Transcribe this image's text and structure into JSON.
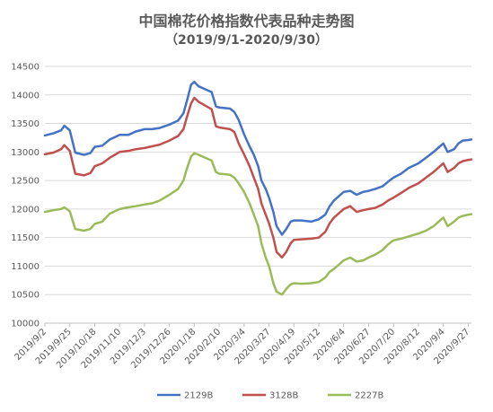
{
  "chart_data": {
    "type": "line",
    "title": "中国棉花价格指数代表品种走势图",
    "subtitle": "（2019/9/1-2020/9/30）",
    "xlabel": "",
    "ylabel": "",
    "ylim": [
      10000,
      14500
    ],
    "yticks": [
      "10000",
      "10500",
      "11000",
      "11500",
      "12000",
      "12500",
      "13000",
      "13500",
      "14000",
      "14500"
    ],
    "xticks": [
      "2019/9/2",
      "2019/9/25",
      "2019/10/18",
      "2019/11/10",
      "2019/12/3",
      "2019/12/26",
      "2020/1/18",
      "2020/2/10",
      "2020/3/4",
      "2020/3/27",
      "2020/4/19",
      "2020/5/12",
      "2020/6/4",
      "2020/6/27",
      "2020/7/20",
      "2020/8/12",
      "2020/9/4",
      "2020/9/27"
    ],
    "x_start": "2019/9/2",
    "x_end": "2020/9/30",
    "grid": true,
    "legend_position": "bottom",
    "series": [
      {
        "name": "2129B",
        "color": "#4472C4",
        "points": [
          [
            "2019/9/2",
            13290
          ],
          [
            "2019/9/10",
            13330
          ],
          [
            "2019/9/17",
            13380
          ],
          [
            "2019/9/20",
            13460
          ],
          [
            "2019/9/25",
            13380
          ],
          [
            "2019/9/30",
            12990
          ],
          [
            "2019/10/8",
            12950
          ],
          [
            "2019/10/14",
            12980
          ],
          [
            "2019/10/18",
            13090
          ],
          [
            "2019/10/25",
            13110
          ],
          [
            "2019/11/1",
            13220
          ],
          [
            "2019/11/10",
            13300
          ],
          [
            "2019/11/18",
            13300
          ],
          [
            "2019/11/25",
            13360
          ],
          [
            "2019/12/3",
            13400
          ],
          [
            "2019/12/10",
            13400
          ],
          [
            "2019/12/17",
            13420
          ],
          [
            "2019/12/26",
            13480
          ],
          [
            "2020/1/3",
            13550
          ],
          [
            "2020/1/8",
            13680
          ],
          [
            "2020/1/11",
            13880
          ],
          [
            "2020/1/15",
            14180
          ],
          [
            "2020/1/18",
            14230
          ],
          [
            "2020/1/22",
            14150
          ],
          [
            "2020/2/3",
            14050
          ],
          [
            "2020/2/7",
            13800
          ],
          [
            "2020/2/10",
            13780
          ],
          [
            "2020/2/20",
            13760
          ],
          [
            "2020/2/24",
            13700
          ],
          [
            "2020/2/28",
            13560
          ],
          [
            "2020/3/4",
            13310
          ],
          [
            "2020/3/9",
            13100
          ],
          [
            "2020/3/13",
            12950
          ],
          [
            "2020/3/17",
            12750
          ],
          [
            "2020/3/20",
            12500
          ],
          [
            "2020/3/24",
            12350
          ],
          [
            "2020/3/27",
            12200
          ],
          [
            "2020/3/31",
            11950
          ],
          [
            "2020/4/3",
            11700
          ],
          [
            "2020/4/8",
            11550
          ],
          [
            "2020/4/12",
            11650
          ],
          [
            "2020/4/16",
            11780
          ],
          [
            "2020/4/19",
            11800
          ],
          [
            "2020/4/26",
            11800
          ],
          [
            "2020/5/5",
            11780
          ],
          [
            "2020/5/12",
            11820
          ],
          [
            "2020/5/18",
            11900
          ],
          [
            "2020/5/22",
            12050
          ],
          [
            "2020/5/26",
            12150
          ],
          [
            "2020/6/1",
            12250
          ],
          [
            "2020/6/4",
            12300
          ],
          [
            "2020/6/10",
            12320
          ],
          [
            "2020/6/16",
            12250
          ],
          [
            "2020/6/22",
            12300
          ],
          [
            "2020/6/27",
            12320
          ],
          [
            "2020/7/3",
            12350
          ],
          [
            "2020/7/10",
            12400
          ],
          [
            "2020/7/15",
            12480
          ],
          [
            "2020/7/20",
            12550
          ],
          [
            "2020/7/27",
            12620
          ],
          [
            "2020/8/3",
            12720
          ],
          [
            "2020/8/12",
            12800
          ],
          [
            "2020/8/19",
            12900
          ],
          [
            "2020/8/26",
            13000
          ],
          [
            "2020/9/1",
            13100
          ],
          [
            "2020/9/4",
            13150
          ],
          [
            "2020/9/8",
            13000
          ],
          [
            "2020/9/14",
            13050
          ],
          [
            "2020/9/18",
            13150
          ],
          [
            "2020/9/22",
            13200
          ],
          [
            "2020/9/27",
            13210
          ],
          [
            "2020/9/30",
            13220
          ]
        ]
      },
      {
        "name": "3128B",
        "color": "#C0504D",
        "points": [
          [
            "2019/9/2",
            12960
          ],
          [
            "2019/9/10",
            12990
          ],
          [
            "2019/9/17",
            13050
          ],
          [
            "2019/9/20",
            13120
          ],
          [
            "2019/9/25",
            13020
          ],
          [
            "2019/9/30",
            12620
          ],
          [
            "2019/10/8",
            12590
          ],
          [
            "2019/10/14",
            12630
          ],
          [
            "2019/10/18",
            12750
          ],
          [
            "2019/10/25",
            12800
          ],
          [
            "2019/11/1",
            12900
          ],
          [
            "2019/11/10",
            13000
          ],
          [
            "2019/11/18",
            13020
          ],
          [
            "2019/11/25",
            13050
          ],
          [
            "2019/12/3",
            13070
          ],
          [
            "2019/12/10",
            13100
          ],
          [
            "2019/12/17",
            13130
          ],
          [
            "2019/12/26",
            13200
          ],
          [
            "2020/1/3",
            13280
          ],
          [
            "2020/1/8",
            13400
          ],
          [
            "2020/1/11",
            13600
          ],
          [
            "2020/1/15",
            13850
          ],
          [
            "2020/1/18",
            13950
          ],
          [
            "2020/1/22",
            13880
          ],
          [
            "2020/2/3",
            13750
          ],
          [
            "2020/2/7",
            13450
          ],
          [
            "2020/2/10",
            13430
          ],
          [
            "2020/2/20",
            13400
          ],
          [
            "2020/2/24",
            13350
          ],
          [
            "2020/2/28",
            13150
          ],
          [
            "2020/3/4",
            12960
          ],
          [
            "2020/3/9",
            12750
          ],
          [
            "2020/3/13",
            12550
          ],
          [
            "2020/3/17",
            12350
          ],
          [
            "2020/3/20",
            12100
          ],
          [
            "2020/3/24",
            11900
          ],
          [
            "2020/3/27",
            11750
          ],
          [
            "2020/3/31",
            11500
          ],
          [
            "2020/4/3",
            11250
          ],
          [
            "2020/4/8",
            11150
          ],
          [
            "2020/4/12",
            11250
          ],
          [
            "2020/4/16",
            11400
          ],
          [
            "2020/4/19",
            11460
          ],
          [
            "2020/4/26",
            11470
          ],
          [
            "2020/5/5",
            11480
          ],
          [
            "2020/5/12",
            11500
          ],
          [
            "2020/5/18",
            11600
          ],
          [
            "2020/5/22",
            11750
          ],
          [
            "2020/5/26",
            11850
          ],
          [
            "2020/6/1",
            11950
          ],
          [
            "2020/6/4",
            12000
          ],
          [
            "2020/6/10",
            12050
          ],
          [
            "2020/6/16",
            11950
          ],
          [
            "2020/6/22",
            11980
          ],
          [
            "2020/6/27",
            12000
          ],
          [
            "2020/7/3",
            12020
          ],
          [
            "2020/7/10",
            12080
          ],
          [
            "2020/7/15",
            12150
          ],
          [
            "2020/7/20",
            12200
          ],
          [
            "2020/7/27",
            12280
          ],
          [
            "2020/8/3",
            12370
          ],
          [
            "2020/8/12",
            12450
          ],
          [
            "2020/8/19",
            12550
          ],
          [
            "2020/8/26",
            12650
          ],
          [
            "2020/9/1",
            12750
          ],
          [
            "2020/9/4",
            12800
          ],
          [
            "2020/9/8",
            12650
          ],
          [
            "2020/9/14",
            12720
          ],
          [
            "2020/9/18",
            12800
          ],
          [
            "2020/9/22",
            12840
          ],
          [
            "2020/9/27",
            12860
          ],
          [
            "2020/9/30",
            12870
          ]
        ]
      },
      {
        "name": "2227B",
        "color": "#9BBB59",
        "points": [
          [
            "2019/9/2",
            11950
          ],
          [
            "2019/9/10",
            11980
          ],
          [
            "2019/9/17",
            12000
          ],
          [
            "2019/9/20",
            12030
          ],
          [
            "2019/9/25",
            11960
          ],
          [
            "2019/9/30",
            11650
          ],
          [
            "2019/10/8",
            11620
          ],
          [
            "2019/10/14",
            11650
          ],
          [
            "2019/10/18",
            11740
          ],
          [
            "2019/10/25",
            11780
          ],
          [
            "2019/11/1",
            11920
          ],
          [
            "2019/11/10",
            12000
          ],
          [
            "2019/11/18",
            12030
          ],
          [
            "2019/11/25",
            12050
          ],
          [
            "2019/12/3",
            12080
          ],
          [
            "2019/12/10",
            12100
          ],
          [
            "2019/12/17",
            12150
          ],
          [
            "2019/12/26",
            12250
          ],
          [
            "2020/1/3",
            12350
          ],
          [
            "2020/1/8",
            12500
          ],
          [
            "2020/1/11",
            12700
          ],
          [
            "2020/1/15",
            12920
          ],
          [
            "2020/1/18",
            12980
          ],
          [
            "2020/1/22",
            12950
          ],
          [
            "2020/2/3",
            12850
          ],
          [
            "2020/2/7",
            12650
          ],
          [
            "2020/2/10",
            12620
          ],
          [
            "2020/2/20",
            12600
          ],
          [
            "2020/2/24",
            12550
          ],
          [
            "2020/2/28",
            12450
          ],
          [
            "2020/3/4",
            12300
          ],
          [
            "2020/3/9",
            12100
          ],
          [
            "2020/3/13",
            11900
          ],
          [
            "2020/3/17",
            11700
          ],
          [
            "2020/3/20",
            11400
          ],
          [
            "2020/3/24",
            11150
          ],
          [
            "2020/3/27",
            11000
          ],
          [
            "2020/3/31",
            10700
          ],
          [
            "2020/4/3",
            10550
          ],
          [
            "2020/4/8",
            10500
          ],
          [
            "2020/4/12",
            10600
          ],
          [
            "2020/4/16",
            10680
          ],
          [
            "2020/4/19",
            10700
          ],
          [
            "2020/4/26",
            10690
          ],
          [
            "2020/5/5",
            10700
          ],
          [
            "2020/5/12",
            10720
          ],
          [
            "2020/5/18",
            10800
          ],
          [
            "2020/5/22",
            10900
          ],
          [
            "2020/5/26",
            10950
          ],
          [
            "2020/6/1",
            11050
          ],
          [
            "2020/6/4",
            11100
          ],
          [
            "2020/6/10",
            11150
          ],
          [
            "2020/6/16",
            11080
          ],
          [
            "2020/6/22",
            11100
          ],
          [
            "2020/6/27",
            11150
          ],
          [
            "2020/7/3",
            11200
          ],
          [
            "2020/7/10",
            11280
          ],
          [
            "2020/7/15",
            11380
          ],
          [
            "2020/7/20",
            11450
          ],
          [
            "2020/7/27",
            11480
          ],
          [
            "2020/8/3",
            11520
          ],
          [
            "2020/8/12",
            11570
          ],
          [
            "2020/8/19",
            11620
          ],
          [
            "2020/8/26",
            11700
          ],
          [
            "2020/9/1",
            11800
          ],
          [
            "2020/9/4",
            11850
          ],
          [
            "2020/9/8",
            11700
          ],
          [
            "2020/9/14",
            11780
          ],
          [
            "2020/9/18",
            11850
          ],
          [
            "2020/9/22",
            11880
          ],
          [
            "2020/9/27",
            11900
          ],
          [
            "2020/9/30",
            11910
          ]
        ]
      }
    ]
  }
}
